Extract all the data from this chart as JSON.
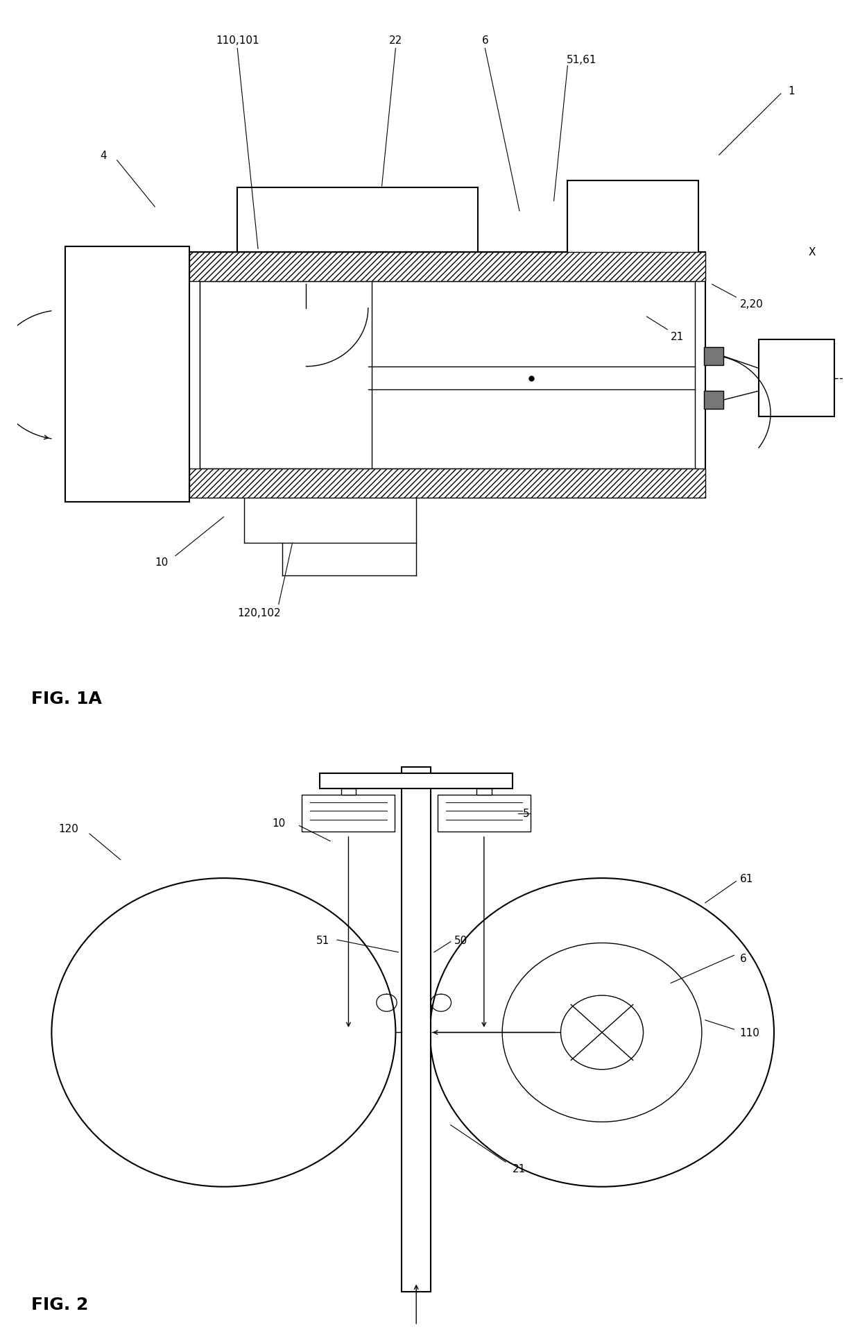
{
  "fig1a_title": "FIG. 1A",
  "fig2_title": "FIG. 2",
  "bg_color": "#ffffff",
  "line_color": "#000000",
  "labels": {
    "110_101": "110,101",
    "22": "22",
    "6": "6",
    "51_61": "51,61",
    "1": "1",
    "4": "4",
    "X": "X",
    "2_20": "2,20",
    "21": "21",
    "10": "10",
    "120_102": "120,102",
    "5": "5",
    "51": "51",
    "50": "50",
    "120": "120",
    "61": "61",
    "110": "110",
    "21b": "21"
  }
}
